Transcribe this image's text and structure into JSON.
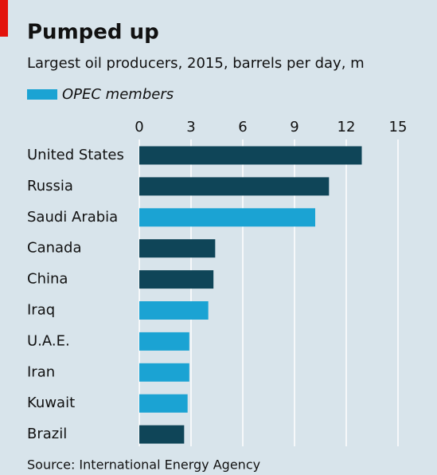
{
  "chart_data": {
    "type": "barh",
    "title": "Pumped up",
    "subtitle": "Largest oil producers, 2015, barrels per day, m",
    "legend": [
      {
        "name": "OPEC members",
        "color": "#1ba3d3"
      }
    ],
    "categories": [
      "United States",
      "Russia",
      "Saudi Arabia",
      "Canada",
      "China",
      "Iraq",
      "U.A.E.",
      "Iran",
      "Kuwait",
      "Brazil"
    ],
    "values": [
      12.9,
      11.0,
      10.2,
      4.4,
      4.3,
      4.0,
      2.9,
      2.9,
      2.8,
      2.6
    ],
    "colors": [
      "#0f4558",
      "#0f4558",
      "#1ba3d3",
      "#0f4558",
      "#0f4558",
      "#1ba3d3",
      "#1ba3d3",
      "#1ba3d3",
      "#1ba3d3",
      "#0f4558"
    ],
    "xlim": [
      0,
      15
    ],
    "xticks": [
      0,
      3,
      6,
      9,
      12,
      15
    ],
    "grid": true,
    "source": "Source: International Energy Agency"
  }
}
